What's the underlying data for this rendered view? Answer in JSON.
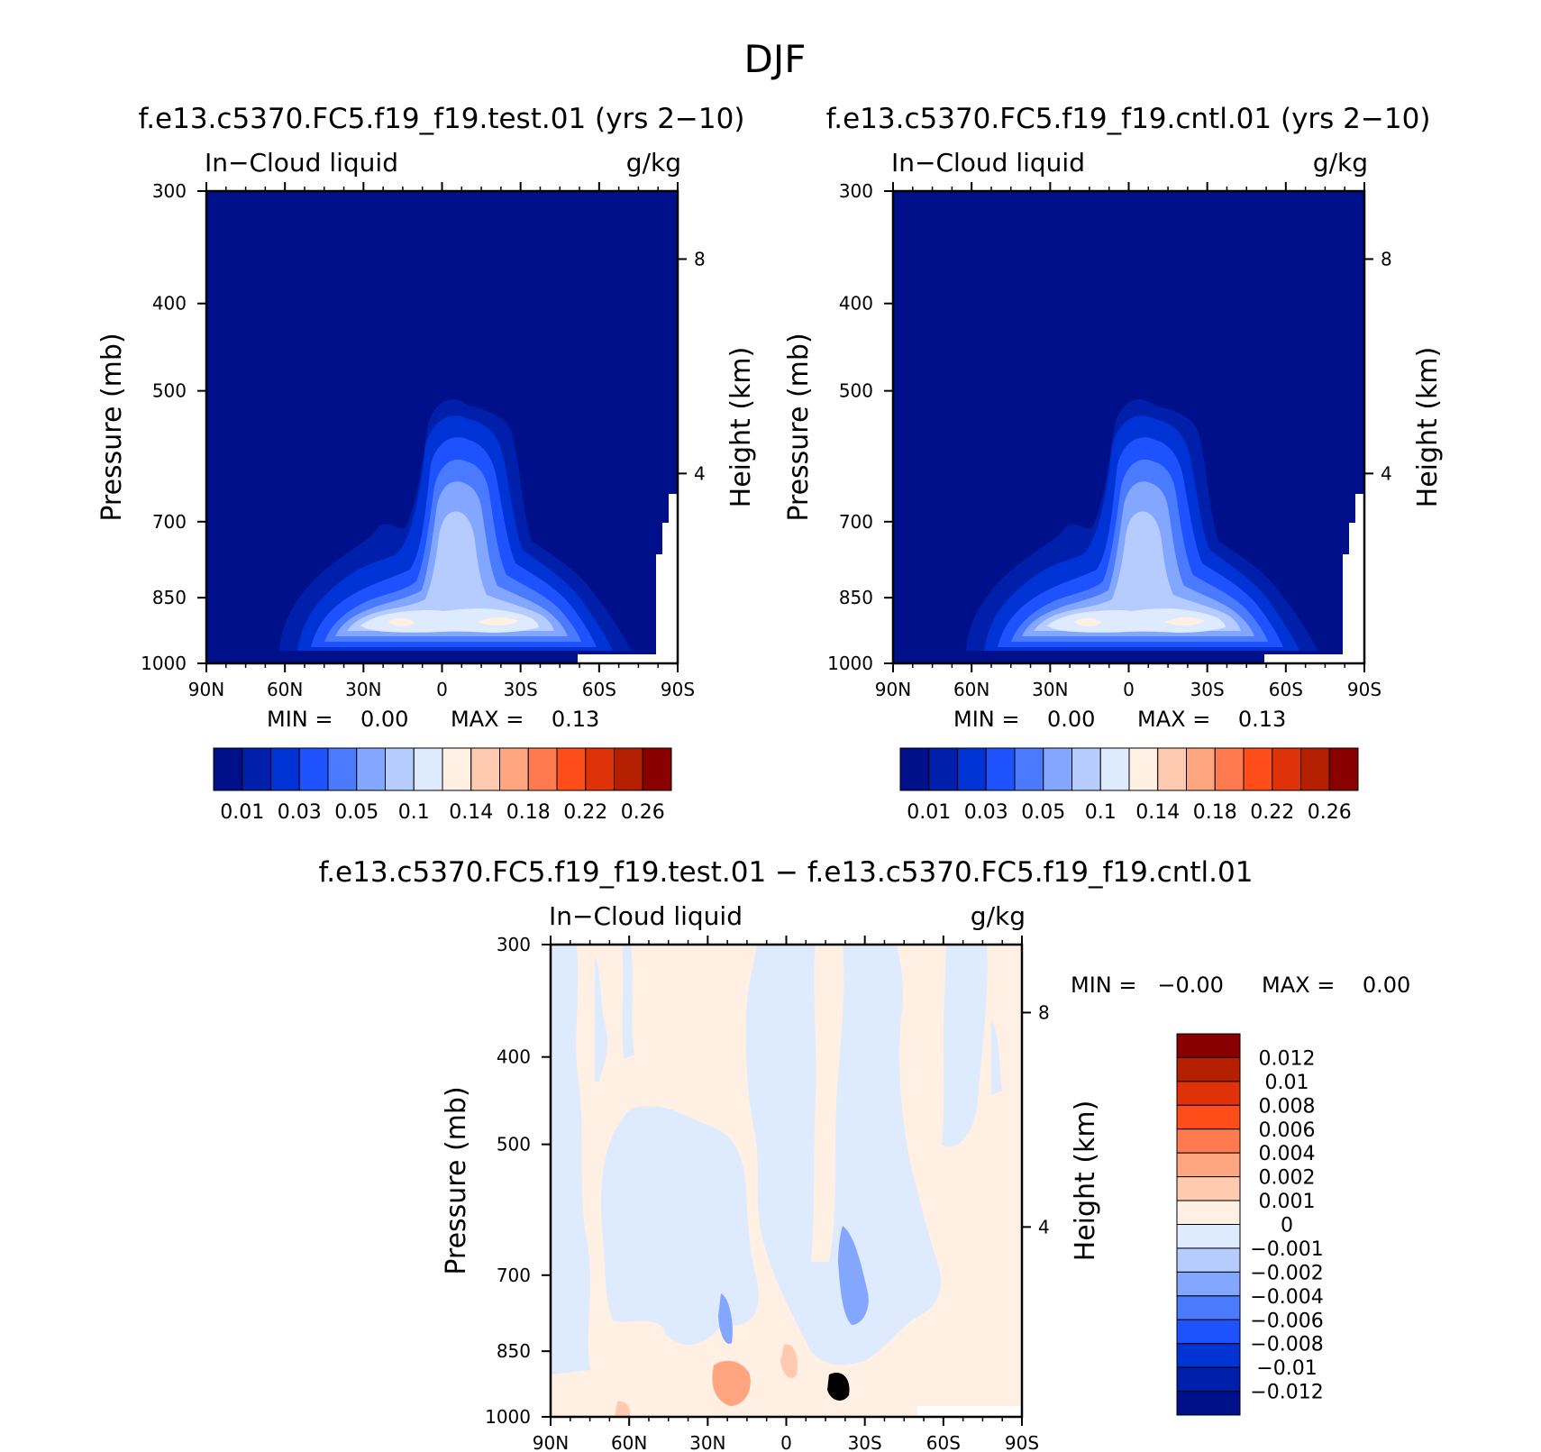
{
  "page_title": "DJF",
  "colors": {
    "abs_palette": [
      "#000f8a",
      "#0020ab",
      "#0033d6",
      "#1f52ff",
      "#4a7bff",
      "#83a6ff",
      "#b6ccff",
      "#deebff",
      "#fff0e3",
      "#ffcab0",
      "#ffa680",
      "#ff7a4f",
      "#ff4d1a",
      "#e0320a",
      "#b31f00",
      "#8a0000"
    ],
    "diff_palette": [
      "#000f8a",
      "#0020ab",
      "#0033d6",
      "#1f52ff",
      "#4a7bff",
      "#83a6ff",
      "#b6ccff",
      "#deebff",
      "#fff0e3",
      "#ffcab0",
      "#ffa680",
      "#ff7a4f",
      "#ff4d1a",
      "#e0320a",
      "#b31f00",
      "#8a0000"
    ]
  },
  "chart_data": [
    {
      "type": "heatmap",
      "title": "f.e13.c5370.FC5.f19_f19.test.01 (yrs 2−10)",
      "left_subtitle": "In−Cloud liquid",
      "right_subtitle": "g/kg",
      "ylabel": "Pressure (mb)",
      "ylabel_right": "Height (km)",
      "x_ticks": [
        "90N",
        "60N",
        "30N",
        "0",
        "30S",
        "60S",
        "90S"
      ],
      "y_ticks": [
        "300",
        "400",
        "500",
        "700",
        "850",
        "1000"
      ],
      "y_ticks_right": [
        "8",
        "4"
      ],
      "x_range": [
        90,
        -90
      ],
      "y_range": [
        1000,
        300
      ],
      "y_scale": "log",
      "min_text": "MIN =    0.00",
      "max_text": "MAX =    0.13",
      "colorbar_labels": [
        "0.01",
        "0.03",
        "0.05",
        "0.1",
        "0.14",
        "0.18",
        "0.22",
        "0.26"
      ],
      "levels": [
        0.01,
        0.02,
        0.03,
        0.04,
        0.05,
        0.06,
        0.08,
        0.1,
        0.12,
        0.14,
        0.16,
        0.18,
        0.2,
        0.22,
        0.24,
        0.26
      ],
      "field_summary": {
        "peak_value": 0.13,
        "peak_location": "~850 mb near 20N-30S",
        "cloud_top_mb": 500
      }
    },
    {
      "type": "heatmap",
      "title": "f.e13.c5370.FC5.f19_f19.cntl.01 (yrs 2−10)",
      "left_subtitle": "In−Cloud liquid",
      "right_subtitle": "g/kg",
      "ylabel": "Pressure (mb)",
      "ylabel_right": "Height (km)",
      "x_ticks": [
        "90N",
        "60N",
        "30N",
        "0",
        "30S",
        "60S",
        "90S"
      ],
      "y_ticks": [
        "300",
        "400",
        "500",
        "700",
        "850",
        "1000"
      ],
      "y_ticks_right": [
        "8",
        "4"
      ],
      "x_range": [
        90,
        -90
      ],
      "y_range": [
        1000,
        300
      ],
      "y_scale": "log",
      "min_text": "MIN =    0.00",
      "max_text": "MAX =    0.13",
      "colorbar_labels": [
        "0.01",
        "0.03",
        "0.05",
        "0.1",
        "0.14",
        "0.18",
        "0.22",
        "0.26"
      ],
      "levels": [
        0.01,
        0.02,
        0.03,
        0.04,
        0.05,
        0.06,
        0.08,
        0.1,
        0.12,
        0.14,
        0.16,
        0.18,
        0.2,
        0.22,
        0.24,
        0.26
      ],
      "field_summary": {
        "peak_value": 0.13,
        "peak_location": "~850 mb near 20N-30S",
        "cloud_top_mb": 500
      }
    },
    {
      "type": "heatmap",
      "title": "f.e13.c5370.FC5.f19_f19.test.01 − f.e13.c5370.FC5.f19_f19.cntl.01",
      "left_subtitle": "In−Cloud liquid",
      "right_subtitle": "g/kg",
      "ylabel": "Pressure (mb)",
      "ylabel_right": "Height (km)",
      "x_ticks": [
        "90N",
        "60N",
        "30N",
        "0",
        "30S",
        "60S",
        "90S"
      ],
      "y_ticks": [
        "300",
        "400",
        "500",
        "700",
        "850",
        "1000"
      ],
      "y_ticks_right": [
        "8",
        "4"
      ],
      "x_range": [
        90,
        -90
      ],
      "y_range": [
        1000,
        300
      ],
      "y_scale": "log",
      "min_text": "MIN =   −0.00",
      "max_text": "MAX =    0.00",
      "colorbar_labels": [
        "0.012",
        "0.01",
        "0.008",
        "0.006",
        "0.004",
        "0.002",
        "0.001",
        "0",
        "−0.001",
        "−0.002",
        "−0.004",
        "−0.006",
        "−0.008",
        "−0.01",
        "−0.012"
      ],
      "levels": [
        -0.012,
        -0.01,
        -0.008,
        -0.006,
        -0.004,
        -0.002,
        -0.001,
        0,
        0.001,
        0.002,
        0.004,
        0.006,
        0.008,
        0.01,
        0.012
      ]
    }
  ]
}
